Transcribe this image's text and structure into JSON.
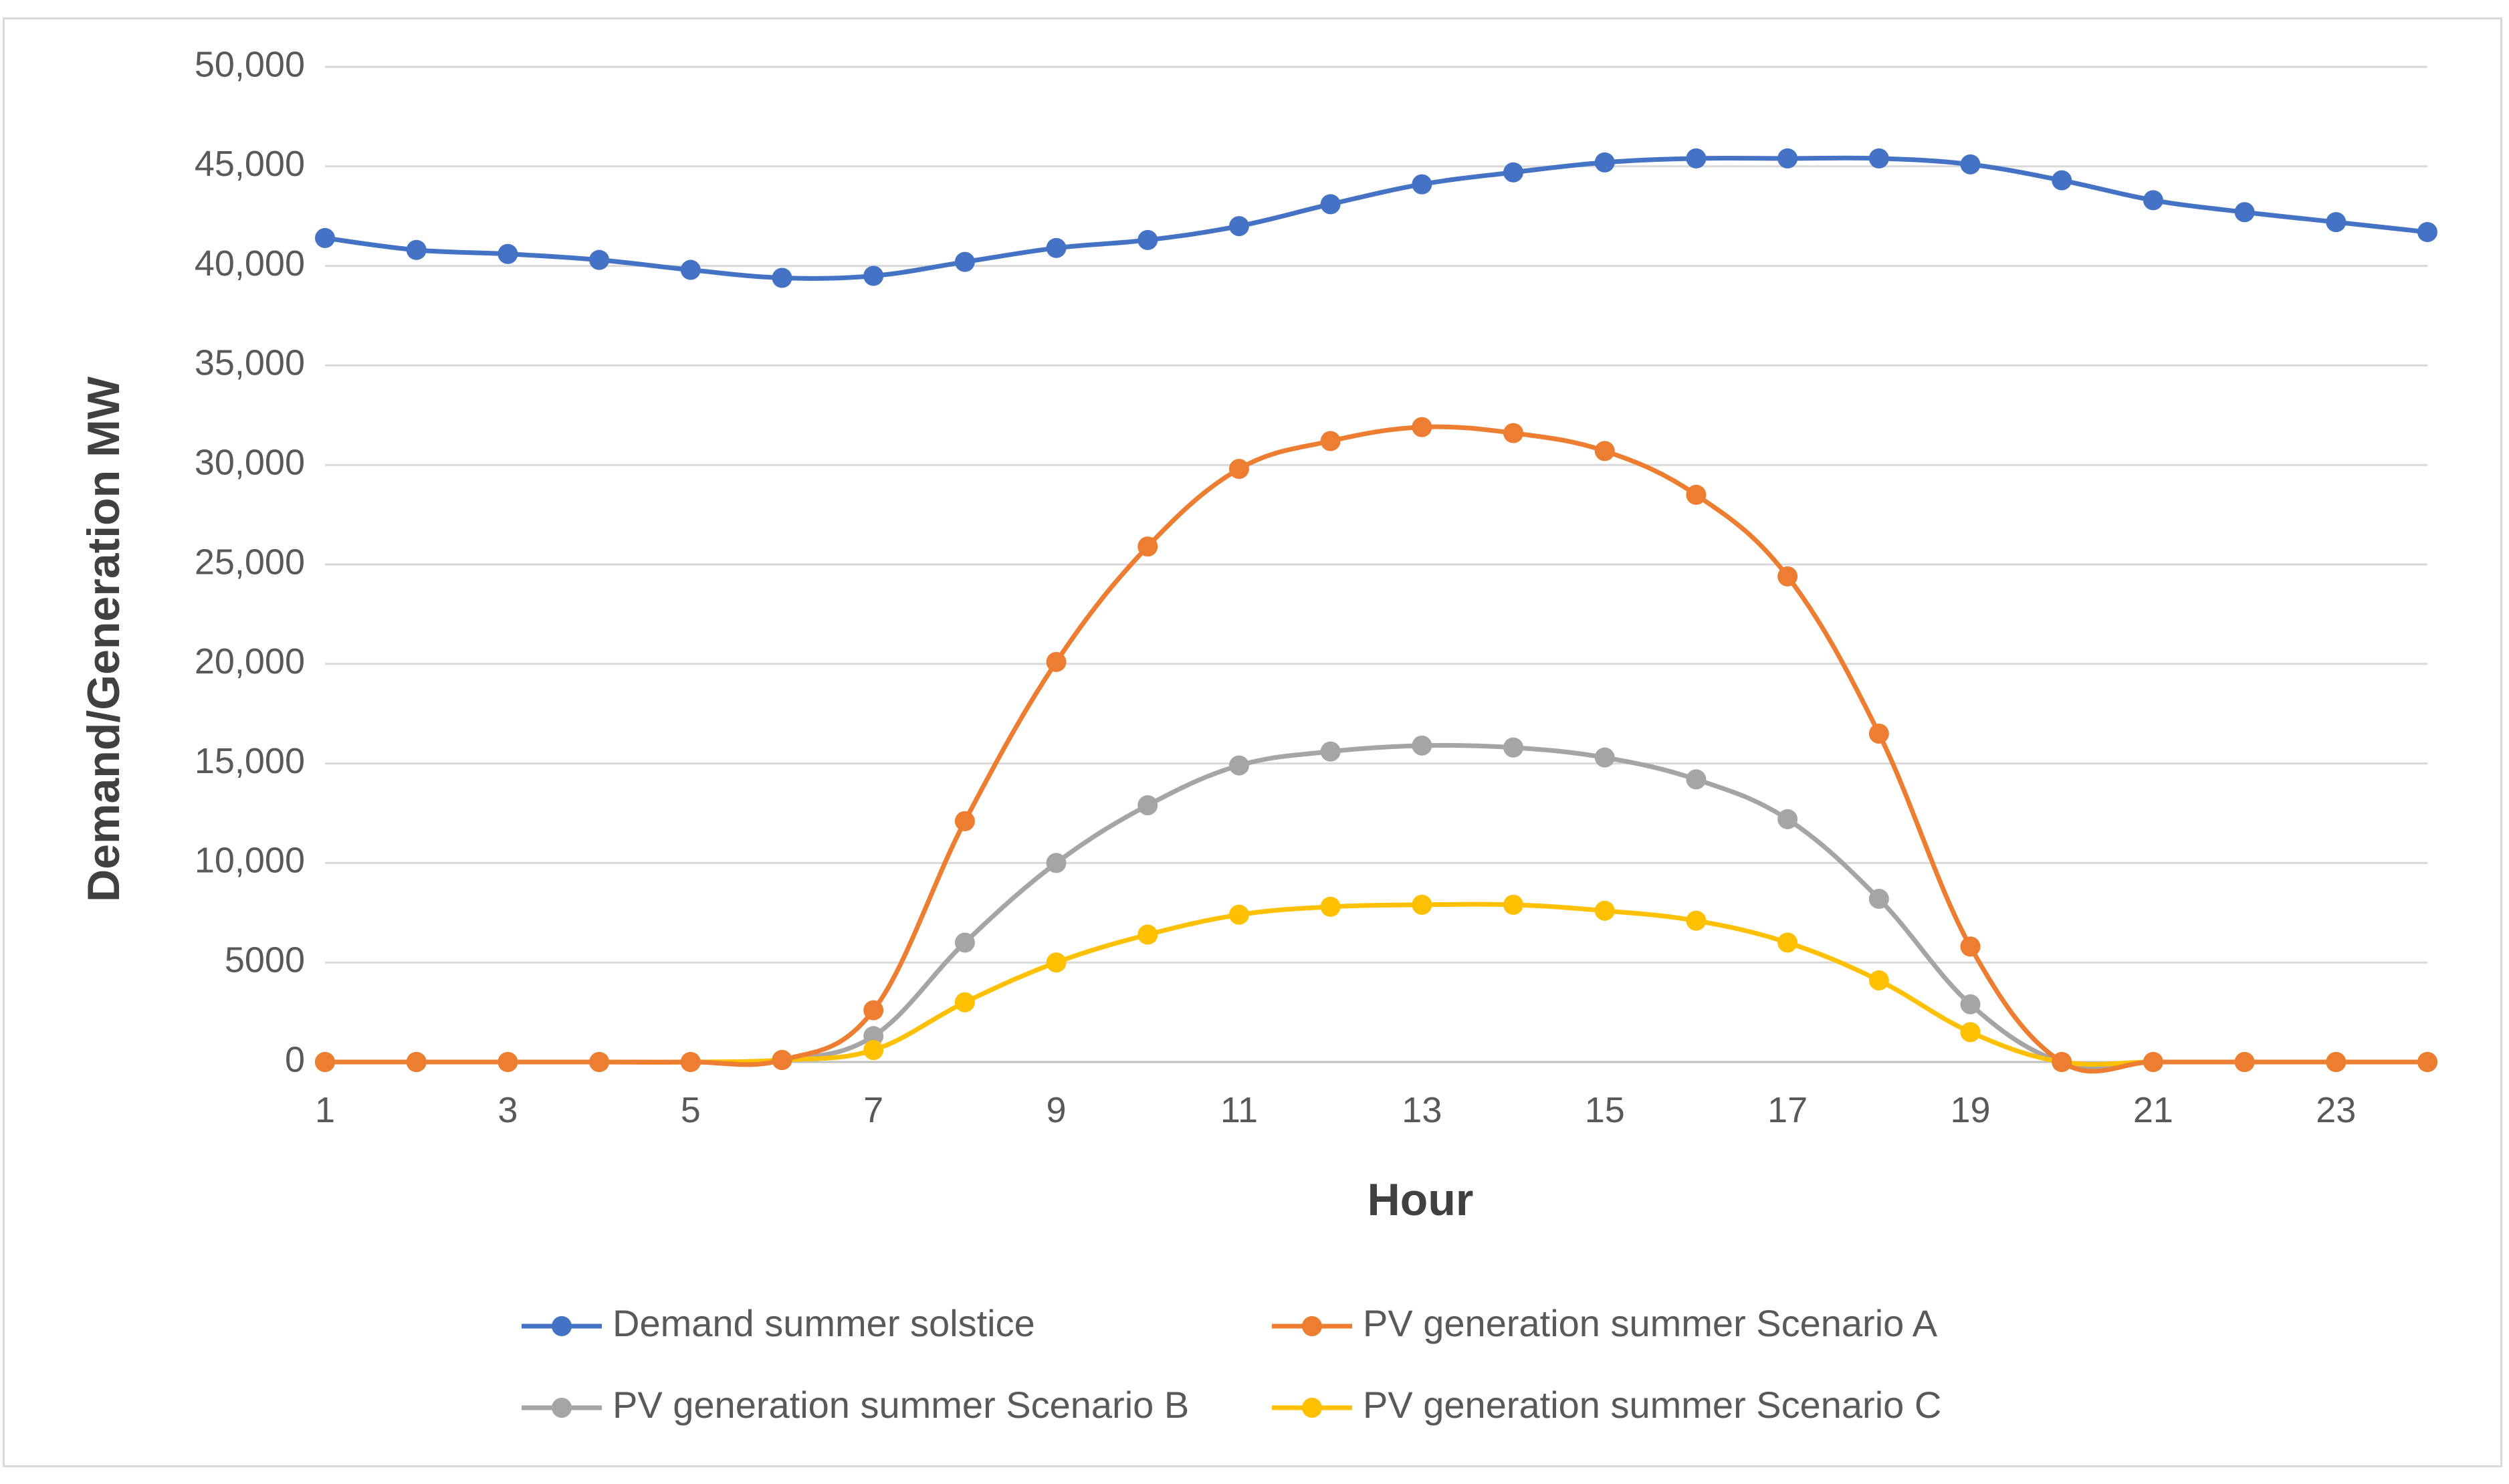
{
  "chart_data": {
    "type": "line",
    "title": "",
    "xlabel": "Hour",
    "ylabel": "Demand/Generation MW",
    "x": [
      1,
      2,
      3,
      4,
      5,
      6,
      7,
      8,
      9,
      10,
      11,
      12,
      13,
      14,
      15,
      16,
      17,
      18,
      19,
      20,
      21,
      22,
      23,
      24
    ],
    "xlim": [
      1,
      24
    ],
    "ylim": [
      0,
      50000
    ],
    "x_ticks": [
      "1",
      "3",
      "5",
      "7",
      "9",
      "11",
      "13",
      "15",
      "17",
      "19",
      "21",
      "23"
    ],
    "y_ticks": [
      "0",
      "5000",
      "10,000",
      "15,000",
      "20,000",
      "25,000",
      "30,000",
      "35,000",
      "40,000",
      "45,000",
      "50,000"
    ],
    "y_tick_values": [
      0,
      5000,
      10000,
      15000,
      20000,
      25000,
      30000,
      35000,
      40000,
      45000,
      50000
    ],
    "x_tick_values": [
      1,
      3,
      5,
      7,
      9,
      11,
      13,
      15,
      17,
      19,
      21,
      23
    ],
    "grid": true,
    "legend_position": "bottom",
    "series": [
      {
        "name": "Demand summer solstice",
        "color": "#4472c4",
        "values": [
          41400,
          40800,
          40600,
          40300,
          39800,
          39400,
          39500,
          40200,
          40900,
          41300,
          42000,
          43100,
          44100,
          44700,
          45200,
          45400,
          45400,
          45400,
          45100,
          44300,
          43300,
          42700,
          42200,
          41700
        ]
      },
      {
        "name": "PV generation summer Scenario A",
        "color": "#ed7d31",
        "values": [
          0,
          0,
          0,
          0,
          0,
          100,
          2600,
          12100,
          20100,
          25900,
          29800,
          31200,
          31900,
          31600,
          30700,
          28500,
          24400,
          16500,
          5800,
          0,
          0,
          0,
          0,
          0
        ]
      },
      {
        "name": "PV generation summer Scenario B",
        "color": "#a5a5a5",
        "values": [
          0,
          0,
          0,
          0,
          0,
          100,
          1300,
          6000,
          10000,
          12900,
          14900,
          15600,
          15900,
          15800,
          15300,
          14200,
          12200,
          8200,
          2900,
          0,
          0,
          0,
          0,
          0
        ]
      },
      {
        "name": "PV generation summer Scenario C",
        "color": "#ffc000",
        "values": [
          0,
          0,
          0,
          0,
          0,
          100,
          600,
          3000,
          5000,
          6400,
          7400,
          7800,
          7900,
          7900,
          7600,
          7100,
          6000,
          4100,
          1500,
          0,
          0,
          0,
          0,
          0
        ]
      }
    ]
  }
}
